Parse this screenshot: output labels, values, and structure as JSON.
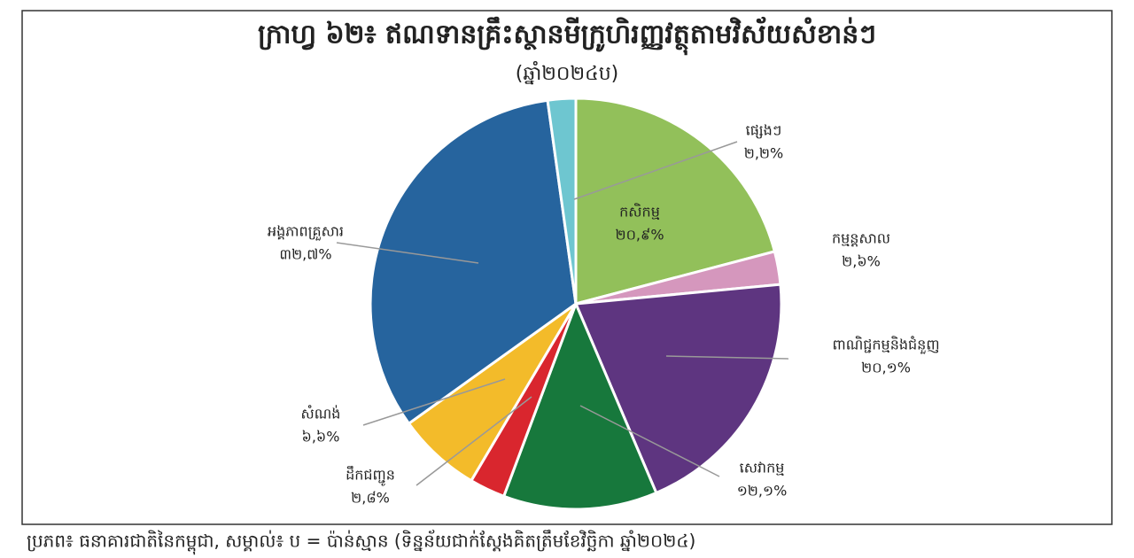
{
  "chart_data": {
    "type": "pie",
    "title": "ក្រាហ្វ ៦២៖ ឥណទានគ្រឹះស្ថានមីក្រូហិរញ្ញវត្ថុតាមវិស័យសំខាន់ៗ",
    "subtitle": "(ឆ្នាំ២០២៤ប)",
    "categories": [
      "កសិកម្ម",
      "កម្មន្តសាល",
      "ពាណិជ្ជកម្មនិងជំនួញ",
      "សេវាកម្ម",
      "ដឹកជញ្ជូន",
      "សំណង់",
      "អង្គភាពគ្រួសារ",
      "ផ្សេងៗ"
    ],
    "values": [
      20.9,
      2.6,
      20.1,
      12.1,
      2.8,
      6.6,
      32.7,
      2.2
    ],
    "value_labels": [
      "២០,៩%",
      "២,៦%",
      "២០,១%",
      "១២,១%",
      "២,៨%",
      "៦,៦%",
      "៣២,៧%",
      "២,២%"
    ],
    "colors": [
      "#92c05a",
      "#d597bd",
      "#5e3580",
      "#17783c",
      "#d9262e",
      "#f3bb2a",
      "#26649e",
      "#6ec6d0"
    ],
    "source": "ប្រភព៖ ធនាគារជាតិនៃកម្ពុជា, សម្គាល់៖ ប = ប៉ាន់ស្មាន (ទិន្នន័យជាក់ស្តែងគិតត្រឹមខែវិច្ឆិកា ឆ្នាំ២០២៤)"
  }
}
